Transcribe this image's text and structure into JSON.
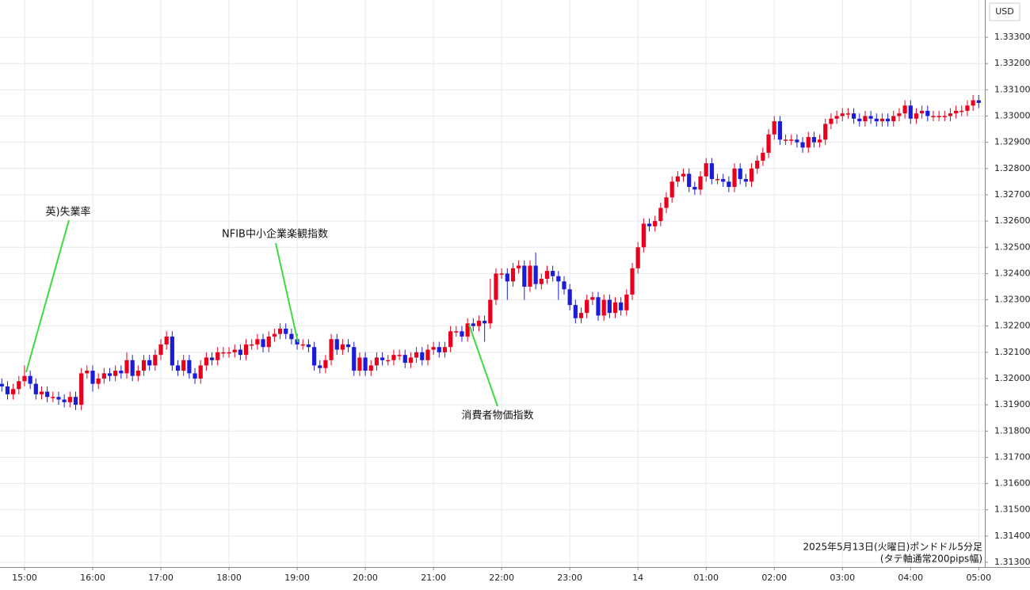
{
  "chart_data": {
    "type": "candlestick",
    "currency_label": "USD",
    "caption": [
      "2025年5月13日(火曜日)ポンドドル5分足",
      "(タテ軸通常200pips幅)"
    ],
    "annotations": [
      {
        "text": "英)失業率"
      },
      {
        "text": "NFIB中小企業楽観指数"
      },
      {
        "text": "消費者物価指数"
      }
    ],
    "up_color": "#e8001c",
    "down_color": "#1c1cd8",
    "grid": true,
    "ylim": [
      1.31282,
      1.33442
    ],
    "yticks": [
      {
        "value": 1.313,
        "label": "1.31300"
      },
      {
        "value": 1.314,
        "label": "1.31400"
      },
      {
        "value": 1.315,
        "label": "1.31500"
      },
      {
        "value": 1.316,
        "label": "1.31600"
      },
      {
        "value": 1.317,
        "label": "1.31700"
      },
      {
        "value": 1.318,
        "label": "1.31800"
      },
      {
        "value": 1.319,
        "label": "1.31900"
      },
      {
        "value": 1.32,
        "label": "1.32000"
      },
      {
        "value": 1.321,
        "label": "1.32100"
      },
      {
        "value": 1.322,
        "label": "1.32200"
      },
      {
        "value": 1.323,
        "label": "1.32300"
      },
      {
        "value": 1.324,
        "label": "1.32400"
      },
      {
        "value": 1.325,
        "label": "1.32500"
      },
      {
        "value": 1.326,
        "label": "1.32600"
      },
      {
        "value": 1.327,
        "label": "1.32700"
      },
      {
        "value": 1.328,
        "label": "1.32800"
      },
      {
        "value": 1.329,
        "label": "1.32900"
      },
      {
        "value": 1.33,
        "label": "1.33000"
      },
      {
        "value": 1.331,
        "label": "1.33100"
      },
      {
        "value": 1.332,
        "label": "1.33200"
      },
      {
        "value": 1.333,
        "label": "1.33300"
      }
    ],
    "categories": [
      null,
      null,
      null,
      null,
      "15:00",
      null,
      null,
      null,
      null,
      null,
      null,
      null,
      null,
      null,
      null,
      null,
      "16:00",
      null,
      null,
      null,
      null,
      null,
      null,
      null,
      null,
      null,
      null,
      null,
      "17:00",
      null,
      null,
      null,
      null,
      null,
      null,
      null,
      null,
      null,
      null,
      null,
      "18:00",
      null,
      null,
      null,
      null,
      null,
      null,
      null,
      null,
      null,
      null,
      null,
      "19:00",
      null,
      null,
      null,
      null,
      null,
      null,
      null,
      null,
      null,
      null,
      null,
      "20:00",
      null,
      null,
      null,
      null,
      null,
      null,
      null,
      null,
      null,
      null,
      null,
      "21:00",
      null,
      null,
      null,
      null,
      null,
      null,
      null,
      null,
      null,
      null,
      null,
      "22:00",
      null,
      null,
      null,
      null,
      null,
      null,
      null,
      null,
      null,
      null,
      null,
      "23:00",
      null,
      null,
      null,
      null,
      null,
      null,
      null,
      null,
      null,
      null,
      null,
      "14",
      null,
      null,
      null,
      null,
      null,
      null,
      null,
      null,
      null,
      null,
      null,
      "01:00",
      null,
      null,
      null,
      null,
      null,
      null,
      null,
      null,
      null,
      null,
      null,
      "02:00",
      null,
      null,
      null,
      null,
      null,
      null,
      null,
      null,
      null,
      null,
      null,
      "03:00",
      null,
      null,
      null,
      null,
      null,
      null,
      null,
      null,
      null,
      null,
      null,
      "04:00",
      null,
      null,
      null,
      null,
      null,
      null,
      null,
      null,
      null,
      null,
      null,
      "05:00"
    ],
    "open": [
      1.3198,
      1.3197,
      1.3194,
      1.3196,
      1.3199,
      1.3201,
      1.3198,
      1.3194,
      1.3195,
      1.3193,
      1.3193,
      1.3192,
      1.3191,
      1.3193,
      1.319,
      1.3202,
      1.3203,
      1.3198,
      1.32,
      1.3202,
      1.3201,
      1.3203,
      1.3202,
      1.3207,
      1.3201,
      1.3203,
      1.3207,
      1.3205,
      1.3209,
      1.3213,
      1.3216,
      1.3205,
      1.3203,
      1.3207,
      1.3202,
      1.32,
      1.3205,
      1.3208,
      1.3207,
      1.321,
      1.321,
      1.321,
      1.3211,
      1.3209,
      1.3213,
      1.3213,
      1.3215,
      1.3212,
      1.3216,
      1.3217,
      1.3219,
      1.3217,
      1.3215,
      1.3213,
      1.3213,
      1.3212,
      1.3205,
      1.3204,
      1.3207,
      1.3215,
      1.3211,
      1.3213,
      1.3212,
      1.3203,
      1.3208,
      1.3203,
      1.3205,
      1.3208,
      1.3207,
      1.3207,
      1.3209,
      1.3209,
      1.3206,
      1.3208,
      1.321,
      1.3207,
      1.3211,
      1.3212,
      1.321,
      1.3212,
      1.3218,
      1.3218,
      1.3216,
      1.3221,
      1.322,
      1.3222,
      1.3221,
      1.323,
      1.324,
      1.324,
      1.3237,
      1.3242,
      1.3243,
      1.3235,
      1.3243,
      1.3236,
      1.3238,
      1.3241,
      1.3239,
      1.3237,
      1.3234,
      1.3228,
      1.3223,
      1.3225,
      1.323,
      1.3231,
      1.3224,
      1.323,
      1.3225,
      1.3229,
      1.3226,
      1.3232,
      1.3242,
      1.325,
      1.3259,
      1.3258,
      1.326,
      1.3265,
      1.3269,
      1.3275,
      1.3277,
      1.3278,
      1.3273,
      1.3272,
      1.3277,
      1.3282,
      1.3276,
      1.3276,
      1.3275,
      1.3273,
      1.328,
      1.3276,
      1.3275,
      1.328,
      1.3283,
      1.3286,
      1.3293,
      1.3298,
      1.3291,
      1.3291,
      1.3291,
      1.329,
      1.3288,
      1.3292,
      1.329,
      1.3291,
      1.3297,
      1.3299,
      1.33,
      1.3301,
      1.3301,
      1.3299,
      1.3298,
      1.33,
      1.3299,
      1.3298,
      1.3299,
      1.3298,
      1.33,
      1.3301,
      1.3304,
      1.3299,
      1.3301,
      1.3302,
      1.33,
      1.33,
      1.33,
      1.33,
      1.3301,
      1.3302,
      1.3302,
      1.3304,
      1.3306
    ],
    "high": [
      1.32,
      1.3199,
      1.3198,
      1.3201,
      1.3205,
      1.3203,
      1.32,
      1.3197,
      1.3197,
      1.3195,
      1.3195,
      1.3194,
      1.3195,
      1.3195,
      1.3204,
      1.3205,
      1.3205,
      1.3202,
      1.3204,
      1.3204,
      1.3205,
      1.3205,
      1.321,
      1.3209,
      1.3205,
      1.3209,
      1.3209,
      1.3211,
      1.3215,
      1.3218,
      1.3218,
      1.3207,
      1.3209,
      1.3209,
      1.3204,
      1.3207,
      1.321,
      1.321,
      1.3212,
      1.3212,
      1.3212,
      1.3213,
      1.3213,
      1.3215,
      1.3215,
      1.3217,
      1.3217,
      1.3218,
      1.3219,
      1.3221,
      1.3221,
      1.3219,
      1.3217,
      1.3215,
      1.3215,
      1.3214,
      1.3207,
      1.3209,
      1.3217,
      1.3217,
      1.3215,
      1.3215,
      1.3214,
      1.321,
      1.321,
      1.3207,
      1.321,
      1.321,
      1.3209,
      1.3211,
      1.3211,
      1.3211,
      1.321,
      1.3212,
      1.3212,
      1.3213,
      1.3214,
      1.3214,
      1.3214,
      1.322,
      1.322,
      1.322,
      1.3223,
      1.3223,
      1.3224,
      1.3224,
      1.3238,
      1.3242,
      1.3242,
      1.3242,
      1.3244,
      1.3245,
      1.3245,
      1.3245,
      1.3248,
      1.324,
      1.3243,
      1.3243,
      1.3241,
      1.3239,
      1.3236,
      1.323,
      1.3227,
      1.3232,
      1.3233,
      1.3233,
      1.3232,
      1.3232,
      1.3231,
      1.3231,
      1.3234,
      1.3244,
      1.3252,
      1.3261,
      1.3261,
      1.3262,
      1.3267,
      1.3271,
      1.3277,
      1.3279,
      1.328,
      1.328,
      1.3275,
      1.3279,
      1.3284,
      1.3284,
      1.3278,
      1.3278,
      1.3277,
      1.3282,
      1.3282,
      1.3278,
      1.3282,
      1.3285,
      1.3288,
      1.3295,
      1.33,
      1.33,
      1.3293,
      1.3293,
      1.3293,
      1.3292,
      1.3294,
      1.3294,
      1.3293,
      1.3299,
      1.3301,
      1.3302,
      1.3303,
      1.3303,
      1.3303,
      1.3301,
      1.3302,
      1.3302,
      1.3301,
      1.3301,
      1.3301,
      1.3302,
      1.3303,
      1.3306,
      1.3306,
      1.3303,
      1.3304,
      1.3304,
      1.3302,
      1.3302,
      1.3302,
      1.3303,
      1.3304,
      1.3304,
      1.3306,
      1.3308,
      1.3308
    ],
    "low": [
      1.3195,
      1.3192,
      1.3192,
      1.3194,
      1.3197,
      1.3196,
      1.3192,
      1.3192,
      1.3191,
      1.3191,
      1.319,
      1.3189,
      1.3189,
      1.3188,
      1.3188,
      1.32,
      1.3195,
      1.3196,
      1.3198,
      1.3199,
      1.3199,
      1.32,
      1.32,
      1.3199,
      1.3199,
      1.3201,
      1.3203,
      1.3203,
      1.3207,
      1.3211,
      1.3203,
      1.3201,
      1.3201,
      1.32,
      1.3198,
      1.3198,
      1.3203,
      1.3205,
      1.3205,
      1.3208,
      1.3208,
      1.3208,
      1.3207,
      1.3207,
      1.3211,
      1.3211,
      1.321,
      1.321,
      1.3214,
      1.3215,
      1.3215,
      1.3213,
      1.3211,
      1.3211,
      1.321,
      1.3203,
      1.3202,
      1.3202,
      1.3205,
      1.3209,
      1.3209,
      1.321,
      1.3201,
      1.3201,
      1.3201,
      1.3201,
      1.3203,
      1.3205,
      1.3205,
      1.3205,
      1.3207,
      1.3204,
      1.3204,
      1.3206,
      1.3205,
      1.3205,
      1.3209,
      1.3208,
      1.3208,
      1.321,
      1.3216,
      1.3214,
      1.3214,
      1.3218,
      1.3218,
      1.3214,
      1.3219,
      1.3228,
      1.3238,
      1.323,
      1.3235,
      1.324,
      1.323,
      1.3233,
      1.3234,
      1.3234,
      1.3236,
      1.3237,
      1.323,
      1.3232,
      1.3226,
      1.3221,
      1.3221,
      1.3223,
      1.3228,
      1.3222,
      1.3222,
      1.3223,
      1.3223,
      1.3224,
      1.3224,
      1.323,
      1.324,
      1.3248,
      1.3256,
      1.3256,
      1.3258,
      1.3263,
      1.3267,
      1.3273,
      1.3275,
      1.3271,
      1.327,
      1.327,
      1.3275,
      1.3274,
      1.3274,
      1.3273,
      1.3271,
      1.3271,
      1.3274,
      1.3273,
      1.3273,
      1.3278,
      1.3281,
      1.3284,
      1.3291,
      1.3289,
      1.3289,
      1.3289,
      1.3288,
      1.3286,
      1.3286,
      1.3288,
      1.3288,
      1.3289,
      1.3295,
      1.3297,
      1.3298,
      1.3299,
      1.3297,
      1.3296,
      1.3296,
      1.3297,
      1.3296,
      1.3296,
      1.3296,
      1.3296,
      1.3298,
      1.3299,
      1.3297,
      1.3297,
      1.3299,
      1.3298,
      1.3298,
      1.3298,
      1.3298,
      1.3298,
      1.3299,
      1.33,
      1.33,
      1.3302,
      1.3303
    ],
    "close": [
      1.3197,
      1.3194,
      1.3196,
      1.3199,
      1.3201,
      1.3198,
      1.3194,
      1.3195,
      1.3193,
      1.3193,
      1.3192,
      1.3191,
      1.3193,
      1.319,
      1.3202,
      1.3203,
      1.3198,
      1.32,
      1.3202,
      1.3201,
      1.3203,
      1.3202,
      1.3207,
      1.3201,
      1.3203,
      1.3207,
      1.3205,
      1.3209,
      1.3213,
      1.3216,
      1.3205,
      1.3203,
      1.3207,
      1.3202,
      1.32,
      1.3205,
      1.3208,
      1.3207,
      1.321,
      1.321,
      1.321,
      1.3211,
      1.3209,
      1.3213,
      1.3213,
      1.3215,
      1.3212,
      1.3216,
      1.3217,
      1.3219,
      1.3217,
      1.3215,
      1.3213,
      1.3213,
      1.3212,
      1.3205,
      1.3204,
      1.3207,
      1.3215,
      1.3211,
      1.3213,
      1.3212,
      1.3203,
      1.3208,
      1.3203,
      1.3205,
      1.3208,
      1.3207,
      1.3207,
      1.3209,
      1.3209,
      1.3206,
      1.3208,
      1.321,
      1.3207,
      1.3211,
      1.3212,
      1.321,
      1.3212,
      1.3218,
      1.3218,
      1.3216,
      1.3221,
      1.322,
      1.3222,
      1.3221,
      1.323,
      1.324,
      1.324,
      1.3237,
      1.3242,
      1.3243,
      1.3235,
      1.3243,
      1.3236,
      1.3238,
      1.3241,
      1.3239,
      1.3237,
      1.3234,
      1.3228,
      1.3223,
      1.3225,
      1.323,
      1.3231,
      1.3224,
      1.323,
      1.3225,
      1.3229,
      1.3226,
      1.3232,
      1.3242,
      1.325,
      1.3259,
      1.3258,
      1.326,
      1.3265,
      1.3269,
      1.3275,
      1.3277,
      1.3278,
      1.3273,
      1.3272,
      1.3277,
      1.3282,
      1.3276,
      1.3276,
      1.3275,
      1.3273,
      1.328,
      1.3276,
      1.3275,
      1.328,
      1.3283,
      1.3286,
      1.3293,
      1.3298,
      1.3291,
      1.3291,
      1.3291,
      1.329,
      1.3288,
      1.3292,
      1.329,
      1.3291,
      1.3297,
      1.3299,
      1.33,
      1.3301,
      1.3301,
      1.3299,
      1.3298,
      1.33,
      1.3299,
      1.3298,
      1.3299,
      1.3298,
      1.33,
      1.3301,
      1.3304,
      1.3299,
      1.3301,
      1.3302,
      1.33,
      1.33,
      1.33,
      1.33,
      1.3301,
      1.3302,
      1.3302,
      1.3304,
      1.3306,
      1.3305
    ]
  }
}
